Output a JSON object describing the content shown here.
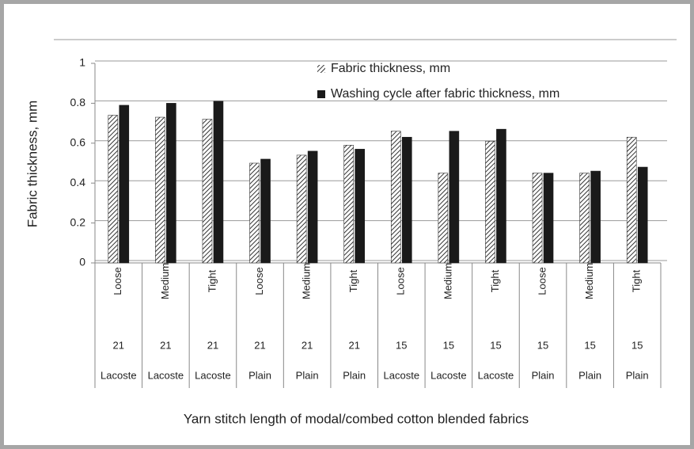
{
  "chart_data": {
    "type": "bar",
    "y_label": "Fabric thickness, mm",
    "x_label": "Yarn stitch length of modal/combed cotton blended fabrics",
    "categories": [
      "Loose",
      "Medium",
      "Tight",
      "Loose",
      "Medium",
      "Tight",
      "Loose",
      "Medium",
      "Tight",
      "Loose",
      "Medium",
      "Tight"
    ],
    "category_level2": [
      "21",
      "21",
      "21",
      "21",
      "21",
      "21",
      "15",
      "15",
      "15",
      "15",
      "15",
      "15"
    ],
    "category_level3": [
      "Lacoste",
      "Lacoste",
      "Lacoste",
      "Plain",
      "Plain",
      "Plain",
      "Lacoste",
      "Lacoste",
      "Lacoste",
      "Plain",
      "Plain",
      "Plain"
    ],
    "series": [
      {
        "name": "Fabric thickness, mm",
        "color": "#333333",
        "pattern": "hatch",
        "values": [
          0.74,
          0.73,
          0.72,
          0.5,
          0.54,
          0.59,
          0.66,
          0.45,
          0.61,
          0.45,
          0.45,
          0.63
        ]
      },
      {
        "name": "Washing cycle after fabric thickness, mm",
        "color": "#1a1a1a",
        "pattern": "solid",
        "values": [
          0.79,
          0.8,
          0.81,
          0.52,
          0.56,
          0.57,
          0.63,
          0.66,
          0.67,
          0.45,
          0.46,
          0.48
        ]
      }
    ],
    "ylim": [
      0,
      1
    ],
    "yticks": [
      0,
      0.2,
      0.4,
      0.6,
      0.8,
      1
    ],
    "grid": true,
    "legend": "top"
  }
}
